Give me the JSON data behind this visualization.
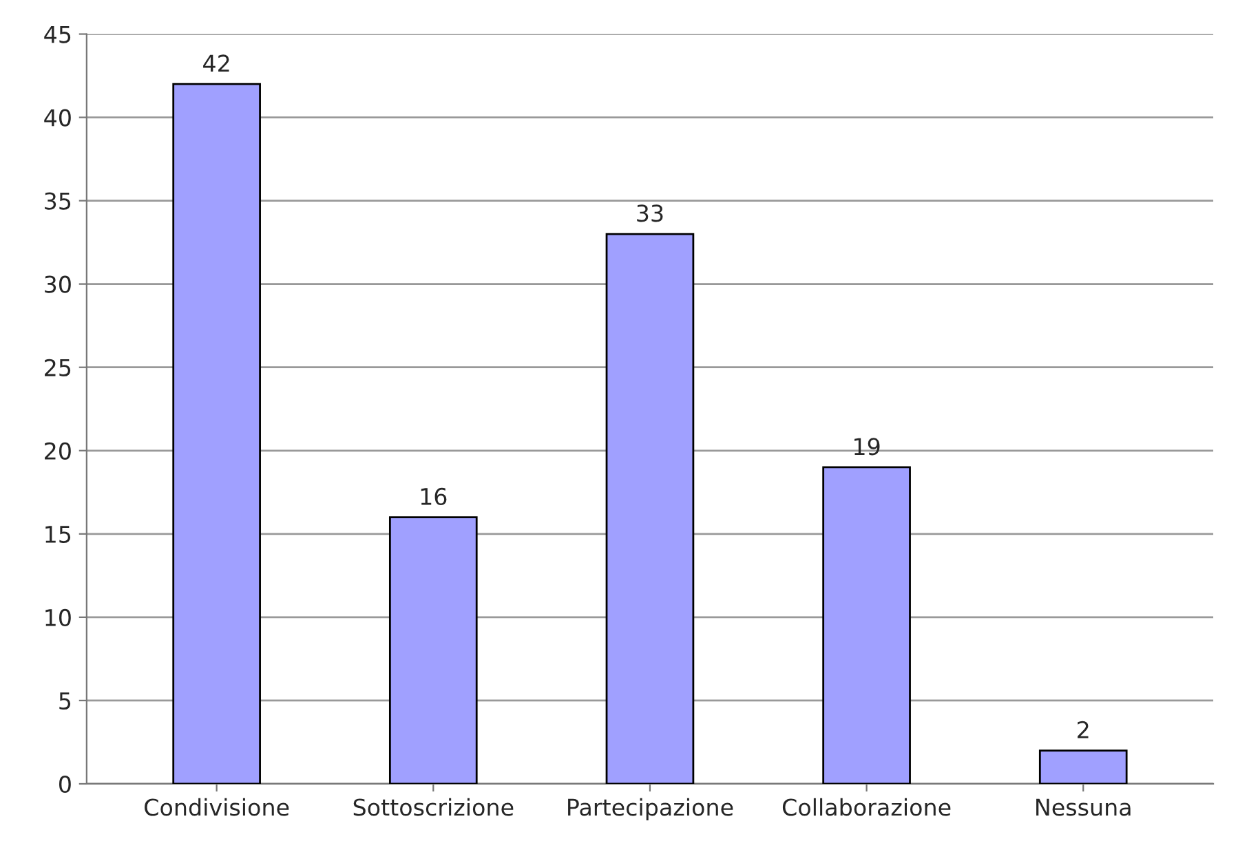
{
  "chart_data": {
    "type": "bar",
    "categories": [
      "Condivisione",
      "Sottoscrizione",
      "Partecipazione",
      "Collaborazione",
      "Nessuna"
    ],
    "values": [
      42,
      16,
      33,
      19,
      2
    ],
    "color": "#a0a0ff",
    "ylim": [
      0,
      45
    ],
    "yticks": [
      0,
      5,
      10,
      15,
      20,
      25,
      30,
      35,
      40,
      45
    ],
    "grid": "y",
    "data_labels": true,
    "legend": false
  }
}
